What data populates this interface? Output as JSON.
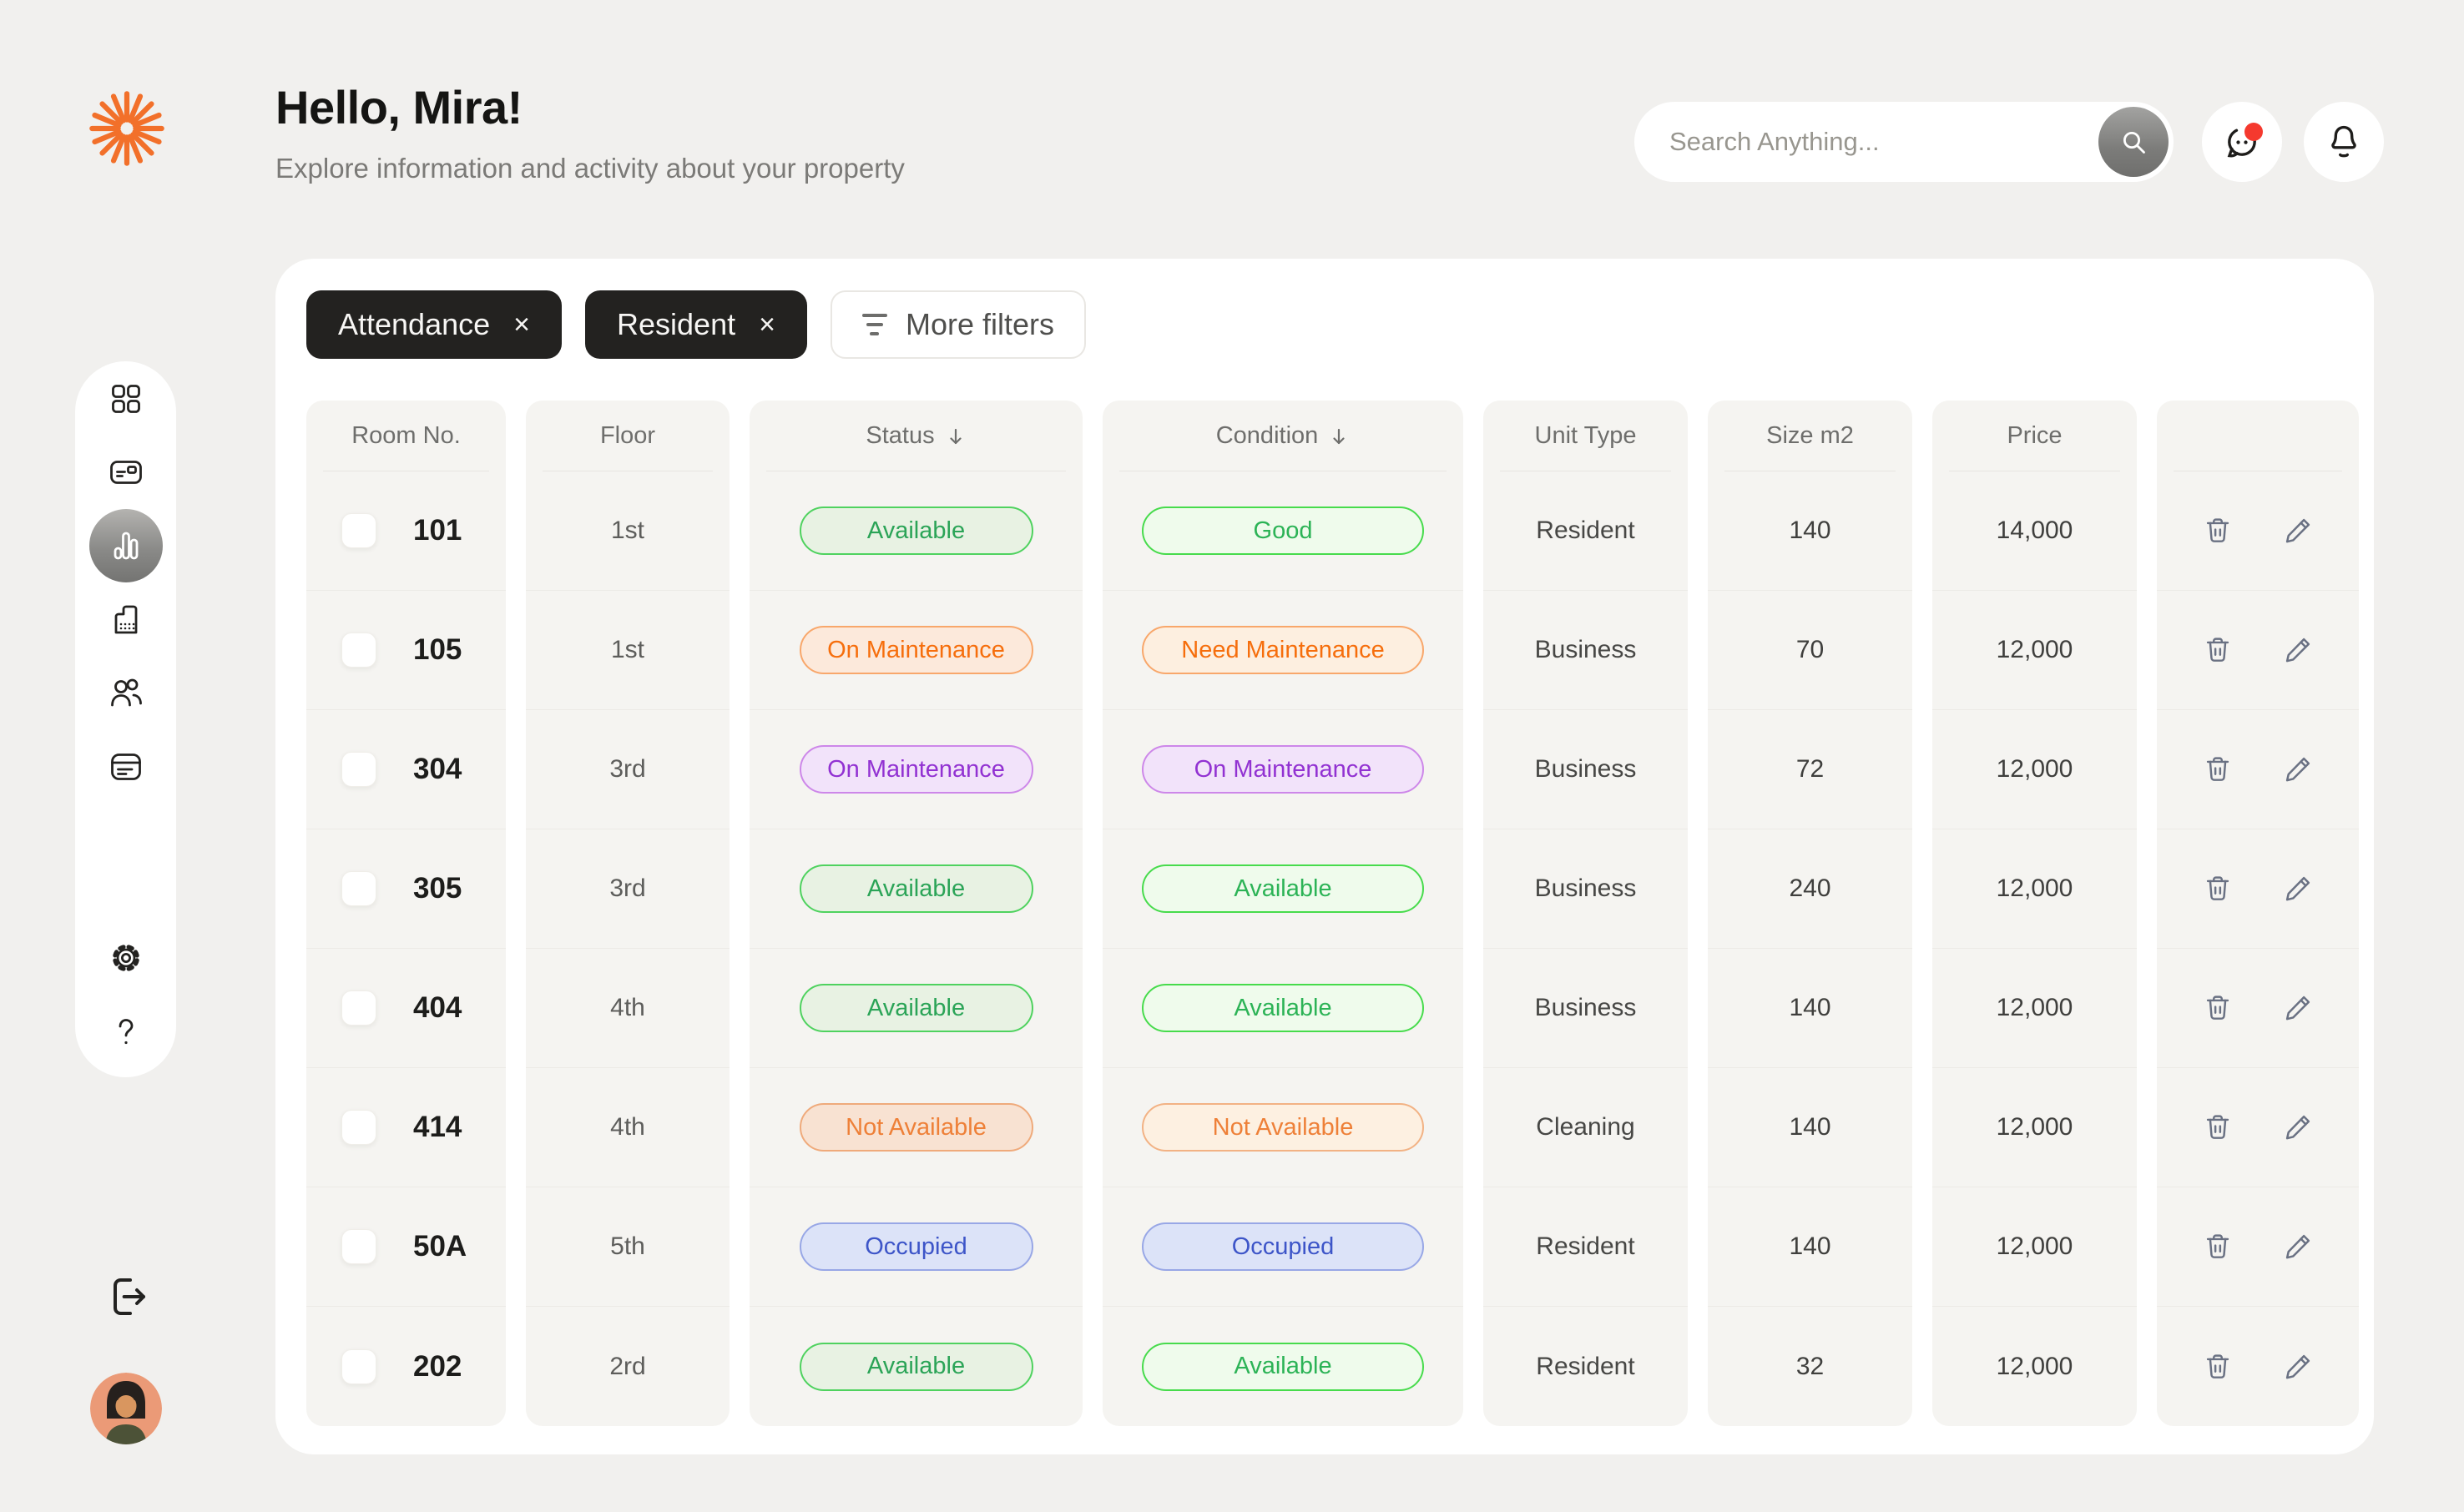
{
  "header": {
    "greeting": "Hello, Mira!",
    "subtitle": "Explore information and activity about your property",
    "search_placeholder": "Search Anything...",
    "chat_has_notification": true
  },
  "sidebar": {
    "items": [
      {
        "icon": "grid-icon",
        "active": false
      },
      {
        "icon": "id-card-icon",
        "active": false
      },
      {
        "icon": "chart-icon",
        "active": true
      },
      {
        "icon": "building-icon",
        "active": false
      },
      {
        "icon": "users-icon",
        "active": false
      },
      {
        "icon": "calendar-icon",
        "active": false
      }
    ],
    "footer_items": [
      {
        "icon": "settings-icon"
      },
      {
        "icon": "help-icon"
      }
    ],
    "logout_icon": "logout-icon",
    "avatar_icon": "user-avatar"
  },
  "filters": {
    "chips": [
      {
        "label": "Attendance"
      },
      {
        "label": "Resident"
      }
    ],
    "more_filters_label": "More filters"
  },
  "table": {
    "columns": [
      {
        "key": "room",
        "label": "Room No.",
        "sorted": false
      },
      {
        "key": "floor",
        "label": "Floor",
        "sorted": false
      },
      {
        "key": "status",
        "label": "Status",
        "sorted": true
      },
      {
        "key": "condition",
        "label": "Condition",
        "sorted": true
      },
      {
        "key": "unit",
        "label": "Unit Type",
        "sorted": false
      },
      {
        "key": "size",
        "label": "Size m2",
        "sorted": false
      },
      {
        "key": "price",
        "label": "Price",
        "sorted": false
      },
      {
        "key": "actions",
        "label": "",
        "sorted": false
      }
    ],
    "rows": [
      {
        "room": "101",
        "floor": "1st",
        "status": {
          "label": "Available",
          "variant": "green"
        },
        "condition": {
          "label": "Good",
          "variant": "green-light"
        },
        "unit_type": "Resident",
        "size": "140",
        "price": "14,000"
      },
      {
        "room": "105",
        "floor": "1st",
        "status": {
          "label": "On Maintenance",
          "variant": "orange"
        },
        "condition": {
          "label": "Need Maintenance",
          "variant": "orange-light"
        },
        "unit_type": "Business",
        "size": "70",
        "price": "12,000"
      },
      {
        "room": "304",
        "floor": "3rd",
        "status": {
          "label": "On Maintenance",
          "variant": "purple"
        },
        "condition": {
          "label": "On Maintenance",
          "variant": "purple"
        },
        "unit_type": "Business",
        "size": "72",
        "price": "12,000"
      },
      {
        "room": "305",
        "floor": "3rd",
        "status": {
          "label": "Available",
          "variant": "green"
        },
        "condition": {
          "label": "Available",
          "variant": "green-light"
        },
        "unit_type": "Business",
        "size": "240",
        "price": "12,000"
      },
      {
        "room": "404",
        "floor": "4th",
        "status": {
          "label": "Available",
          "variant": "green"
        },
        "condition": {
          "label": "Available",
          "variant": "green-light"
        },
        "unit_type": "Business",
        "size": "140",
        "price": "12,000"
      },
      {
        "room": "414",
        "floor": "4th",
        "status": {
          "label": "Not Available",
          "variant": "orange-muted"
        },
        "condition": {
          "label": "Not Available",
          "variant": "orange-muted-light"
        },
        "unit_type": "Cleaning",
        "size": "140",
        "price": "12,000"
      },
      {
        "room": "50A",
        "floor": "5th",
        "status": {
          "label": "Occupied",
          "variant": "blue"
        },
        "condition": {
          "label": "Occupied",
          "variant": "blue"
        },
        "unit_type": "Resident",
        "size": "140",
        "price": "12,000"
      },
      {
        "room": "202",
        "floor": "2rd",
        "status": {
          "label": "Available",
          "variant": "green"
        },
        "condition": {
          "label": "Available",
          "variant": "green-light"
        },
        "unit_type": "Resident",
        "size": "32",
        "price": "12,000"
      }
    ]
  },
  "colors": {
    "accent_orange": "#F2702A",
    "page_bg": "#F1F0EE",
    "card_bg": "#FFFFFF",
    "column_bg": "#F5F4F1",
    "chip_bg": "#232220",
    "chip_text": "#F7F6F4",
    "notification_red": "#F5392E",
    "action_icon": "#6A7183",
    "badge_styles": {
      "green": {
        "text": "#2BA457",
        "border": "#4FD25F",
        "bg": "#E8F2E3"
      },
      "green-light": {
        "text": "#2CB356",
        "border": "#47DB4C",
        "bg": "#EFFBEC"
      },
      "orange": {
        "text": "#F66E0C",
        "border": "#F8A76B",
        "bg": "#FCE9DB"
      },
      "orange-light": {
        "text": "#F66E0C",
        "border": "#F8A76B",
        "bg": "#FDEFE0"
      },
      "orange-muted": {
        "text": "#EE8038",
        "border": "#EFAA7B",
        "bg": "#F8E2D2"
      },
      "orange-muted-light": {
        "text": "#EE8038",
        "border": "#F2B284",
        "bg": "#FDF0E1"
      },
      "purple": {
        "text": "#9232D2",
        "border": "#CD87E9",
        "bg": "#F2E3FA"
      },
      "blue": {
        "text": "#3D55C8",
        "border": "#98A7E6",
        "bg": "#DCE3F8"
      }
    }
  }
}
